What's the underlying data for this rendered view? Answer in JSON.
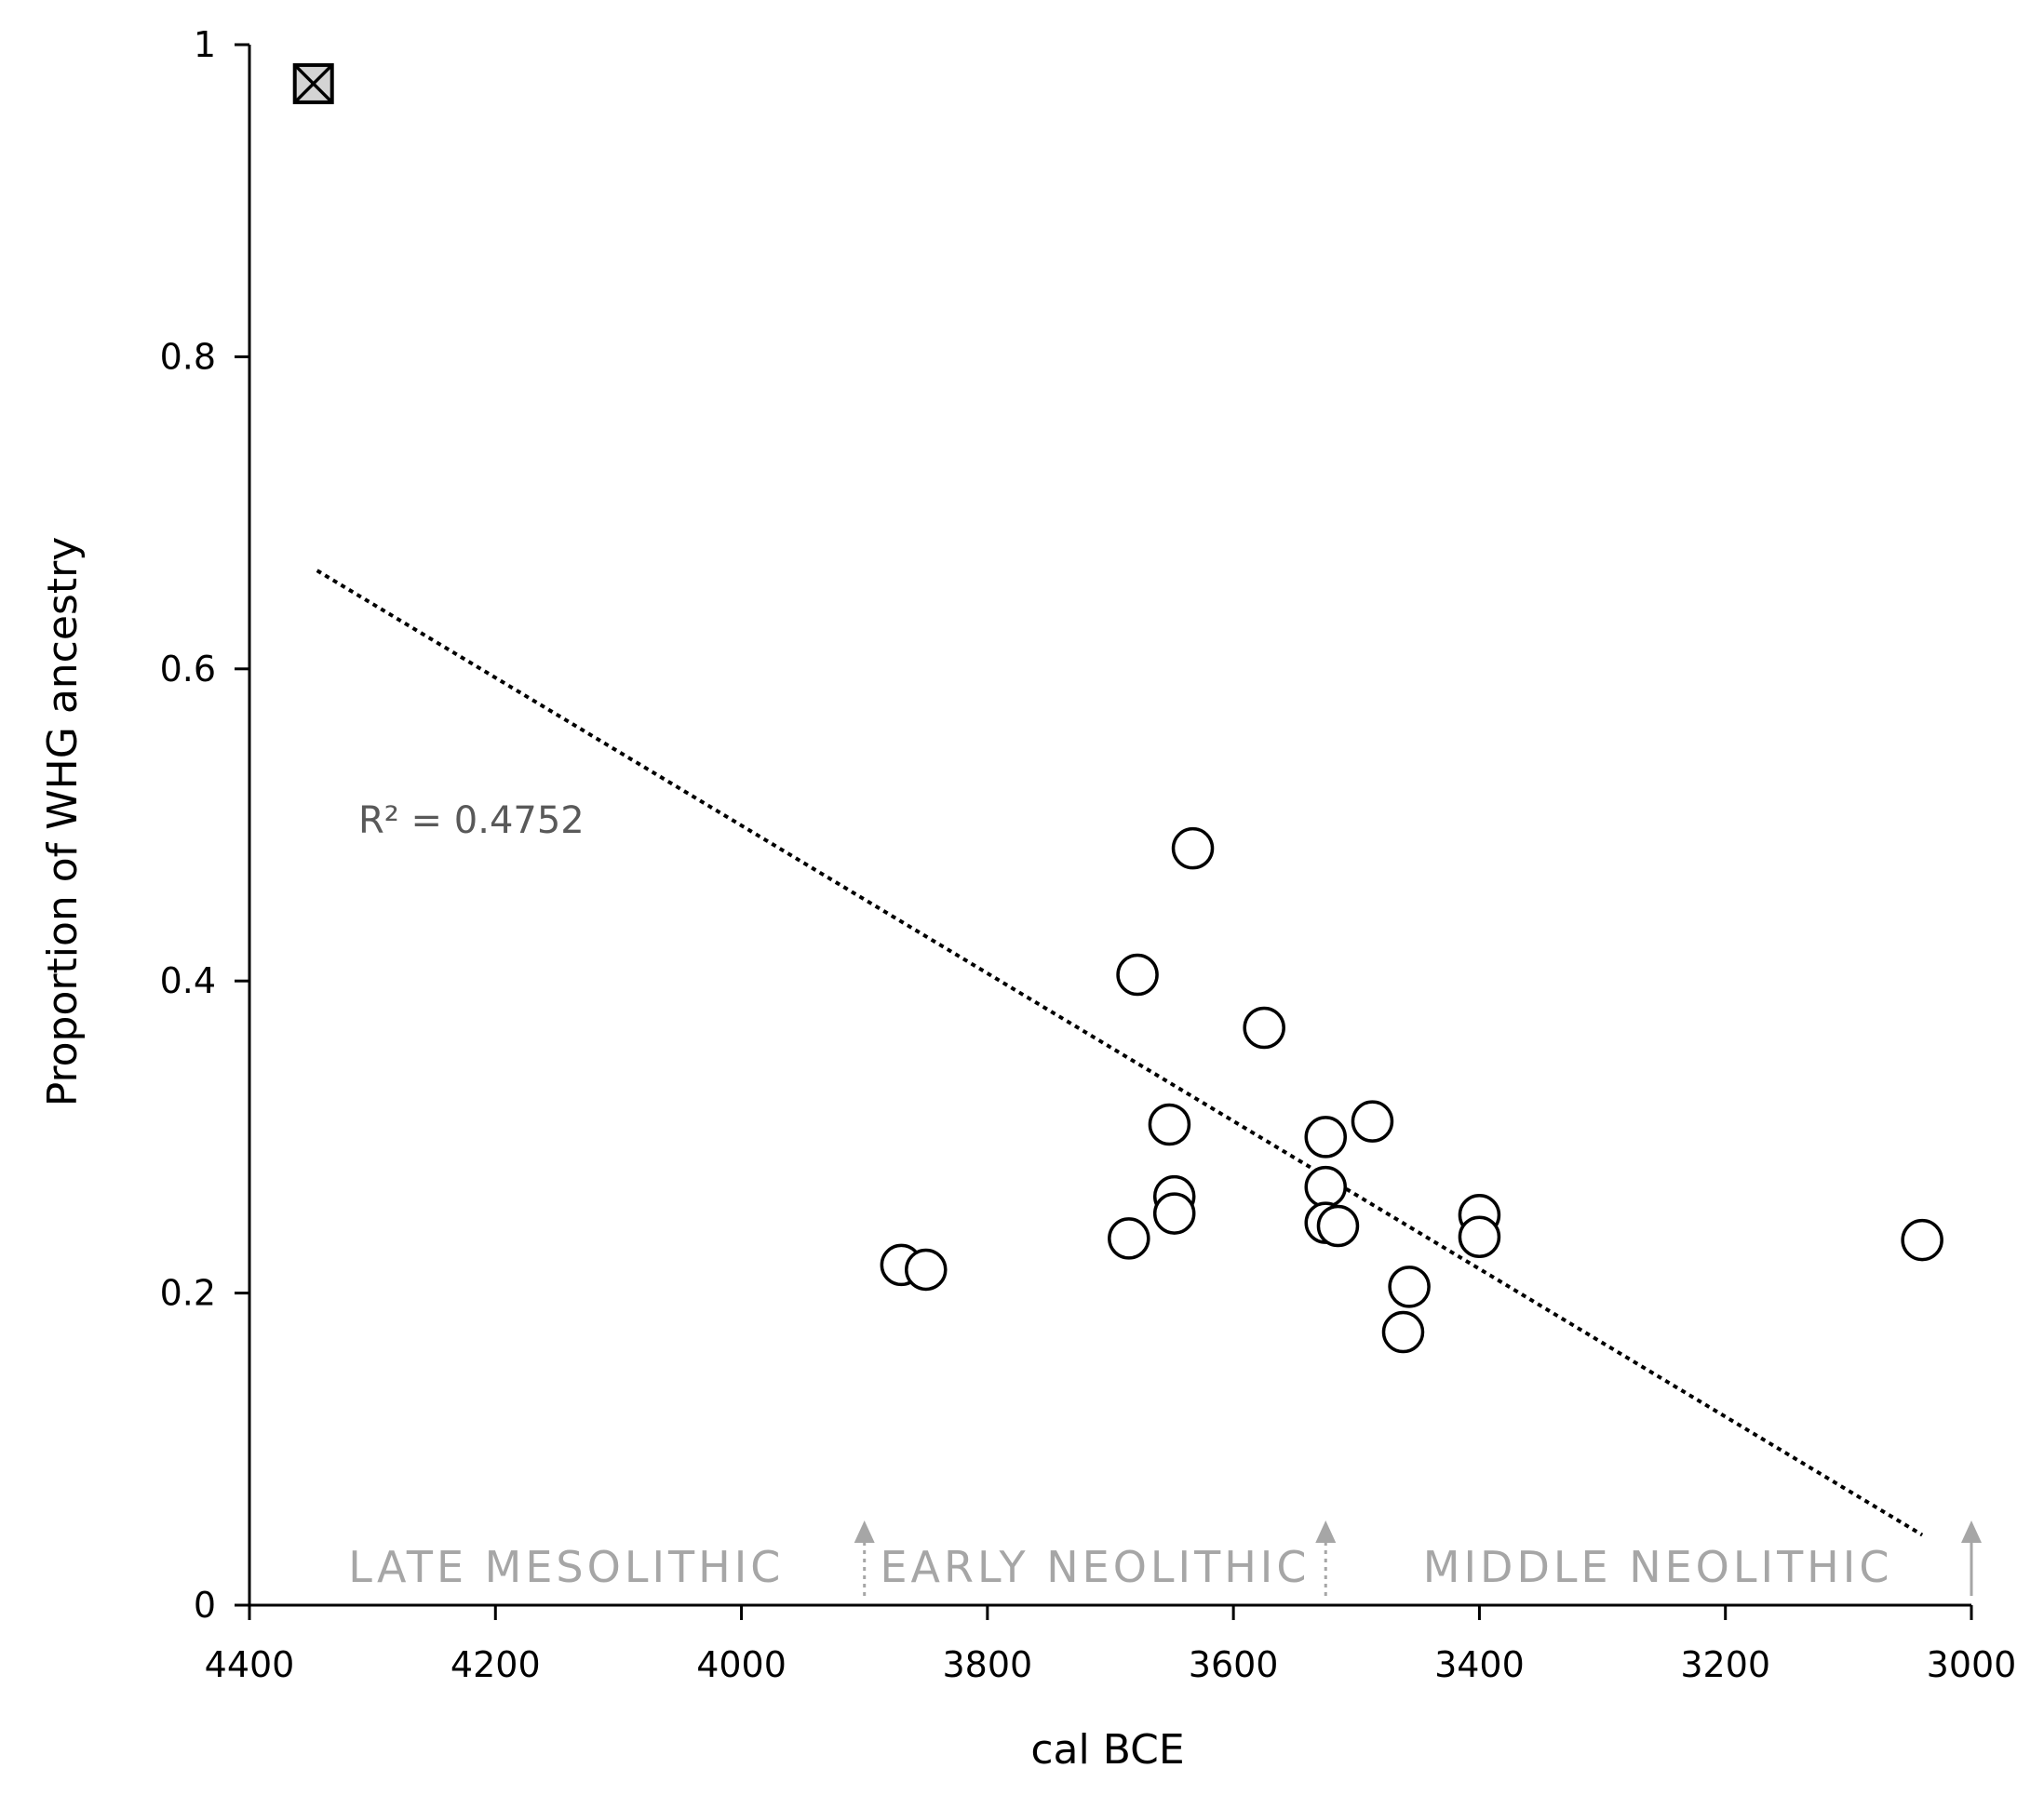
{
  "chart_data": {
    "type": "scatter",
    "xlabel": "cal BCE",
    "ylabel": "Proportion of WHG ancestry",
    "xlim": [
      4400,
      3000
    ],
    "x_reversed": true,
    "ylim": [
      0,
      1
    ],
    "x_ticks": [
      "4400",
      "4200",
      "4000",
      "3800",
      "3600",
      "3400",
      "3200",
      "3000"
    ],
    "y_ticks": [
      "0",
      "0.2",
      "0.4",
      "0.6",
      "0.8",
      "1"
    ],
    "grid": false,
    "series": [
      {
        "marker": "circle",
        "points": [
          {
            "x": 3870,
            "y": 0.218
          },
          {
            "x": 3850,
            "y": 0.215
          },
          {
            "x": 3685,
            "y": 0.235
          },
          {
            "x": 3678,
            "y": 0.404
          },
          {
            "x": 3652,
            "y": 0.308
          },
          {
            "x": 3648,
            "y": 0.262
          },
          {
            "x": 3648,
            "y": 0.251
          },
          {
            "x": 3633,
            "y": 0.485
          },
          {
            "x": 3575,
            "y": 0.37
          },
          {
            "x": 3525,
            "y": 0.3
          },
          {
            "x": 3525,
            "y": 0.268
          },
          {
            "x": 3525,
            "y": 0.245
          },
          {
            "x": 3515,
            "y": 0.243
          },
          {
            "x": 3487,
            "y": 0.31
          },
          {
            "x": 3457,
            "y": 0.204
          },
          {
            "x": 3462,
            "y": 0.175
          },
          {
            "x": 3400,
            "y": 0.25
          },
          {
            "x": 3400,
            "y": 0.236
          },
          {
            "x": 3040,
            "y": 0.234
          }
        ]
      },
      {
        "marker": "boxed-x",
        "points": [
          {
            "x": 4348,
            "y": 0.975
          }
        ]
      }
    ],
    "trendline": {
      "style": "dotted",
      "x_start": 4345,
      "y_start": 0.663,
      "x_end": 3040,
      "y_end": 0.045,
      "label": "R² = 0.4752"
    },
    "periods": [
      {
        "label": "LATE MESOLITHIC"
      },
      {
        "label": "EARLY NEOLITHIC"
      },
      {
        "label": "MIDDLE NEOLITHIC"
      }
    ],
    "period_boundaries": [
      {
        "x": 3900,
        "style": "dotted"
      },
      {
        "x": 3525,
        "style": "dotted"
      },
      {
        "x": 3000,
        "style": "solid"
      }
    ],
    "colors": {
      "axis": "#000000",
      "marker_fill": "#ffffff",
      "marker_stroke": "#000000",
      "boxed_marker_fill": "#d4d4d4",
      "period_text": "#a6a6a6",
      "period_arrow": "#a6a6a6",
      "trendline": "#000000",
      "r2_text": "#595959"
    }
  }
}
